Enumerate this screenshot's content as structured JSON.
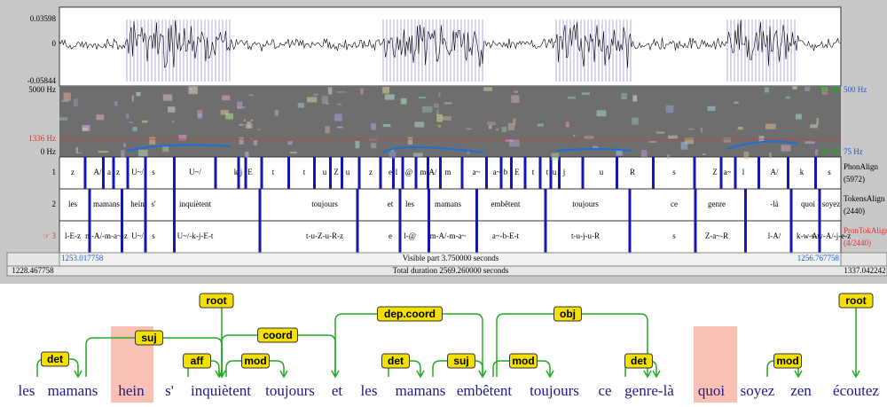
{
  "praat": {
    "waveform": {
      "top": "0.03598",
      "zero": "0",
      "bottom": "-0.05844"
    },
    "spectrogram": {
      "top": "5000 Hz",
      "cursor": "1336 Hz",
      "bottom": "0 Hz",
      "db_top": "100 dB",
      "pitch_top": "500 Hz",
      "db_bottom": "50 dB",
      "pitch_bottom": "75 Hz"
    },
    "tiers": [
      {
        "number": "1",
        "name": "PhonAlign",
        "count": "(5972)",
        "intervals": [
          "z",
          "A/",
          "a",
          "z",
          "U~/",
          "s",
          "U~/",
          "k",
          "j",
          "E",
          "t",
          "t",
          "u",
          "Z",
          "u",
          "z",
          "e",
          "l",
          "@",
          "m",
          "A/",
          "m",
          "a~",
          "a~",
          "b",
          "E",
          "t",
          "t",
          "u",
          "j",
          "u",
          "R",
          "s",
          "Z",
          "a~",
          "l",
          "A/",
          "k",
          "s"
        ]
      },
      {
        "number": "2",
        "name": "TokensAlign",
        "count": "(2440)",
        "intervals": [
          "les",
          "mamans",
          "hein",
          "s'",
          "inquiètent",
          "toujours",
          "et",
          "les",
          "mamans",
          "embêtent",
          "toujours",
          "ce",
          "genre",
          "-là",
          "quoi",
          "soyez"
        ]
      },
      {
        "number": "☞ 3",
        "name": "PronTokAlign",
        "count": "(4/2440)",
        "intervals": [
          "l-E-z",
          "m-A/-m-a~-z",
          "U~/",
          "s",
          "U~/-k-j-E-t",
          "t-u-Z-u-R-z",
          "e",
          "l-@",
          "m-A/-m-a~",
          "a~-b-E-t",
          "t-u-j-u-R",
          "s",
          "Z-a~-R",
          "l-A/",
          "k-w-A/",
          "s-w-A/-j-e-z"
        ]
      }
    ],
    "time": {
      "window_start": "1228.467758",
      "visible_start": "1253.017758",
      "visible": "Visible part 3.750000 seconds",
      "visible_end": "1256.767758",
      "window_end": "1337.042242",
      "total": "Total duration 2569.260000 seconds"
    }
  },
  "dependency": {
    "words": [
      "les",
      "mamans",
      "hein",
      "s'",
      "inquiètent",
      "toujours",
      "et",
      "les",
      "mamans",
      "embêtent",
      "toujours",
      "ce",
      "genre-là",
      "quoi",
      "soyez",
      "zen",
      "écoutez"
    ],
    "arcs": [
      "det",
      "suj",
      "root",
      "aff",
      "mod",
      "coord",
      "dep.coord",
      "det",
      "suj",
      "mod",
      "obj",
      "det",
      "mod",
      "root"
    ]
  }
}
